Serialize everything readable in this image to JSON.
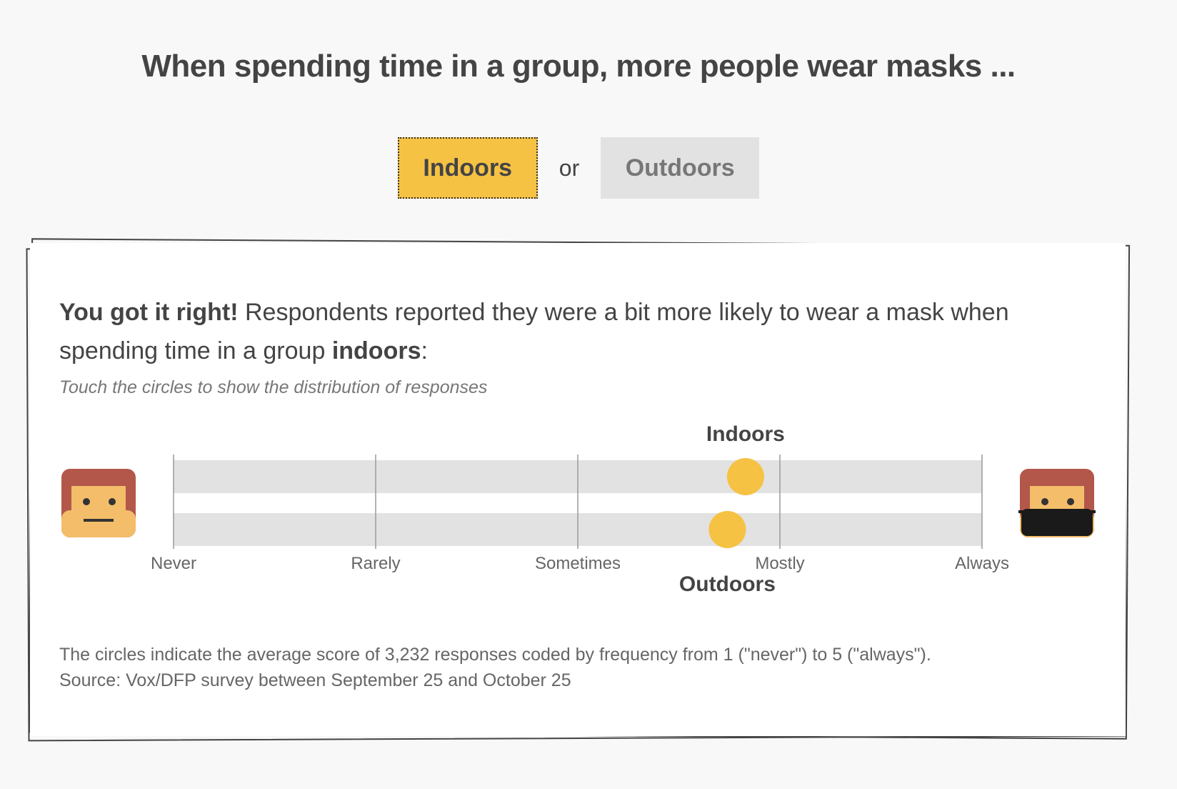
{
  "headline": "When spending time in a group, more people wear masks ...",
  "choice": {
    "indoors_label": "Indoors",
    "or_label": "or",
    "outdoors_label": "Outdoors",
    "selected": "Indoors"
  },
  "result": {
    "lead": "You got it right!",
    "body_part1": " Respondents reported they were a bit more likely to wear a mask when spending time in a group ",
    "body_bold": "indoors",
    "body_end": ":"
  },
  "hint": "Touch the circles to show the distribution of responses",
  "colors": {
    "accent": "#f6c244",
    "track": "#e2e2e2",
    "hair": "#b2574a",
    "skin": "#f3bd6a",
    "mask": "#1a1a1a"
  },
  "icons": {
    "left": "unmasked-face-icon",
    "right": "masked-face-icon"
  },
  "chart_data": {
    "type": "scatter",
    "scale_labels": [
      "Never",
      "Rarely",
      "Sometimes",
      "Mostly",
      "Always"
    ],
    "xlim": [
      1,
      5
    ],
    "series": [
      {
        "name": "Indoors",
        "value": 3.83
      },
      {
        "name": "Outdoors",
        "value": 3.74
      }
    ]
  },
  "note": {
    "line1": "The circles indicate the average score of 3,232 responses coded by frequency from 1 (\"never\") to 5 (\"always\").",
    "line2": "Source: Vox/DFP survey between September 25 and October 25"
  }
}
